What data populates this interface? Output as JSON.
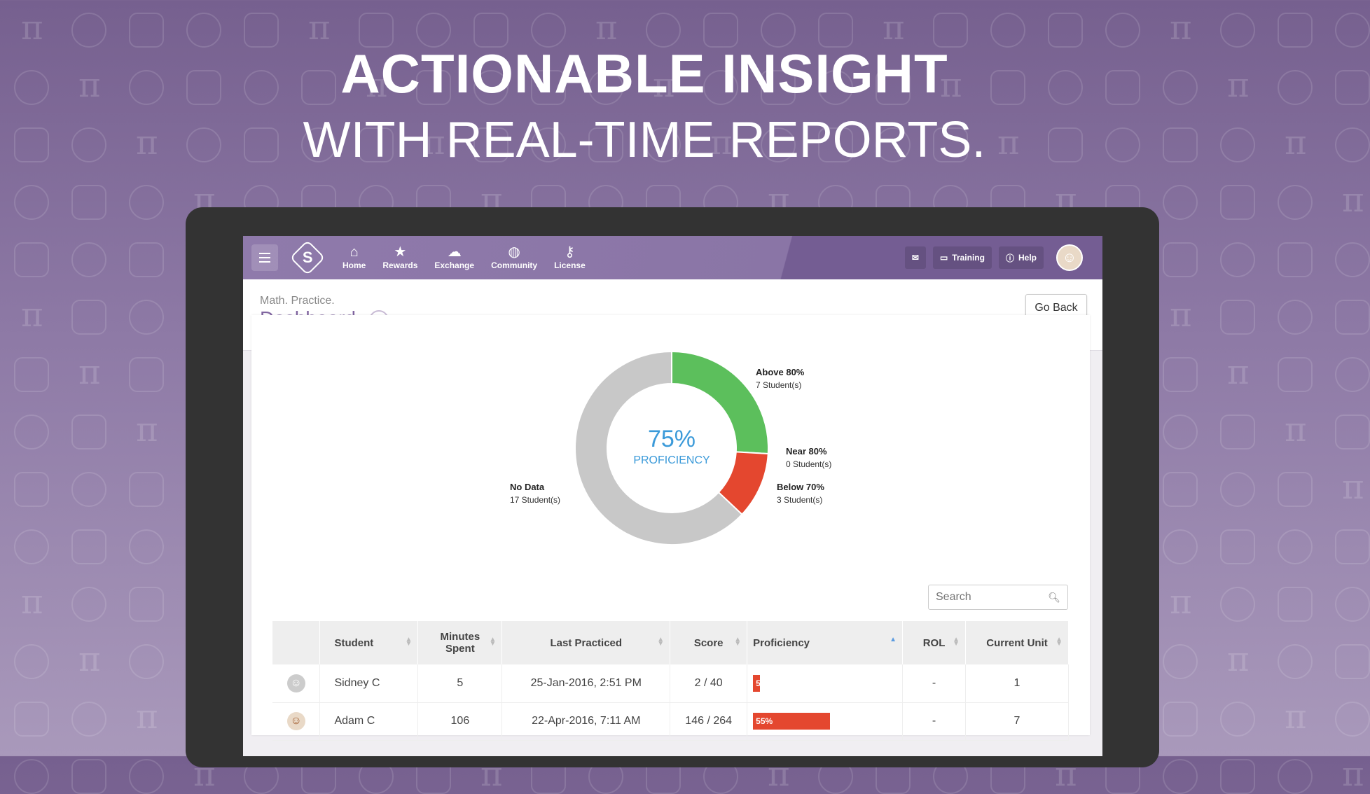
{
  "headline": {
    "line1": "ACTIONABLE INSIGHT",
    "line2": "WITH REAL-TIME REPORTS."
  },
  "navbar": {
    "menu_icon": "hamburger-icon",
    "logo_letter": "S",
    "items": [
      {
        "label": "Home",
        "icon": "home-icon"
      },
      {
        "label": "Rewards",
        "icon": "star-icon"
      },
      {
        "label": "Exchange",
        "icon": "cloud-icon"
      },
      {
        "label": "Community",
        "icon": "globe-icon"
      },
      {
        "label": "License",
        "icon": "key-icon"
      }
    ],
    "training_label": "Training",
    "help_label": "Help"
  },
  "header": {
    "subtitle": "Math. Practice.",
    "title": "Dashboard",
    "go_back_label": "Go Back"
  },
  "chart_data": {
    "type": "pie",
    "center_value": "75%",
    "center_label": "PROFICIENCY",
    "series": [
      {
        "name": "Above 80%",
        "students": 7,
        "label": "7 Student(s)",
        "color": "#5cbf5c"
      },
      {
        "name": "Near 80%",
        "students": 0,
        "label": "0 Student(s)",
        "color": "#f3b94f"
      },
      {
        "name": "Below 70%",
        "students": 3,
        "label": "3 Student(s)",
        "color": "#e4472f"
      },
      {
        "name": "No Data",
        "students": 17,
        "label": "17 Student(s)",
        "color": "#c8c8c8"
      }
    ]
  },
  "search": {
    "placeholder": "Search"
  },
  "table": {
    "columns": [
      "Student",
      "Minutes Spent",
      "Last Practiced",
      "Score",
      "Proficiency",
      "ROL",
      "Current Unit"
    ],
    "rows": [
      {
        "student": "Sidney C",
        "minutes": "5",
        "last": "25-Jan-2016, 2:51 PM",
        "score": "2 / 40",
        "proficiency": 5,
        "proficiency_label": "5",
        "rol": "-",
        "unit": "1"
      },
      {
        "student": "Adam C",
        "minutes": "106",
        "last": "22-Apr-2016, 7:11 AM",
        "score": "146 / 264",
        "proficiency": 55,
        "proficiency_label": "55%",
        "rol": "-",
        "unit": "7"
      }
    ]
  }
}
